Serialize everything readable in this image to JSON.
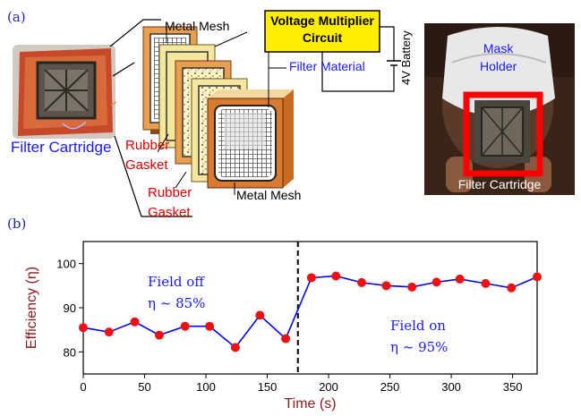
{
  "panel_a": {
    "label": "(a)",
    "cartridge_label": "Filter Cartridge",
    "metal_mesh_top": "Metal Mesh",
    "voltage_line1": "Voltage Multiplier",
    "voltage_line2": "Circuit",
    "filter_material": "Filter Material",
    "battery": "4V Battery",
    "rubber_gasket_1_line1": "Rubber",
    "rubber_gasket_1_line2": "Gasket",
    "rubber_gasket_2_line1": "Rubber",
    "rubber_gasket_2_line2": "Gasket",
    "metal_mesh_bottom": "Metal Mesh",
    "photo_mask_line1": "Mask",
    "photo_mask_line2": "Holder",
    "photo_cartridge": "Filter Cartridge",
    "colors": {
      "label_blue": "#1a1aff",
      "label_red": "#dd0000",
      "box_yellow": "#ffee00"
    }
  },
  "panel_b": {
    "label": "(b)",
    "annotation_off_line1": "Field off",
    "annotation_off_line2": "η ~ 85%",
    "annotation_on_line1": "Field on",
    "annotation_on_line2": "η ~ 95%"
  },
  "chart_data": {
    "type": "line",
    "xlabel": "Time (s)",
    "ylabel": "Efficiency (η)",
    "xlim": [
      0,
      370
    ],
    "ylim": [
      75,
      105
    ],
    "xticks": [
      0,
      50,
      100,
      150,
      200,
      250,
      300,
      350
    ],
    "yticks": [
      80,
      90,
      100
    ],
    "vline_x": 175,
    "series": [
      {
        "x": [
          0,
          21,
          42,
          62,
          83,
          103,
          124,
          144,
          165,
          186,
          206,
          227,
          247,
          268,
          288,
          307,
          328,
          349,
          370
        ],
        "y": [
          85.5,
          84.5,
          86.8,
          83.8,
          85.8,
          85.8,
          81.0,
          88.3,
          83.0,
          96.8,
          97.2,
          95.7,
          95.0,
          94.7,
          95.8,
          96.5,
          95.5,
          94.5,
          97.0
        ],
        "line_color": "#0000ee",
        "marker_color": "#ee1111"
      }
    ]
  }
}
